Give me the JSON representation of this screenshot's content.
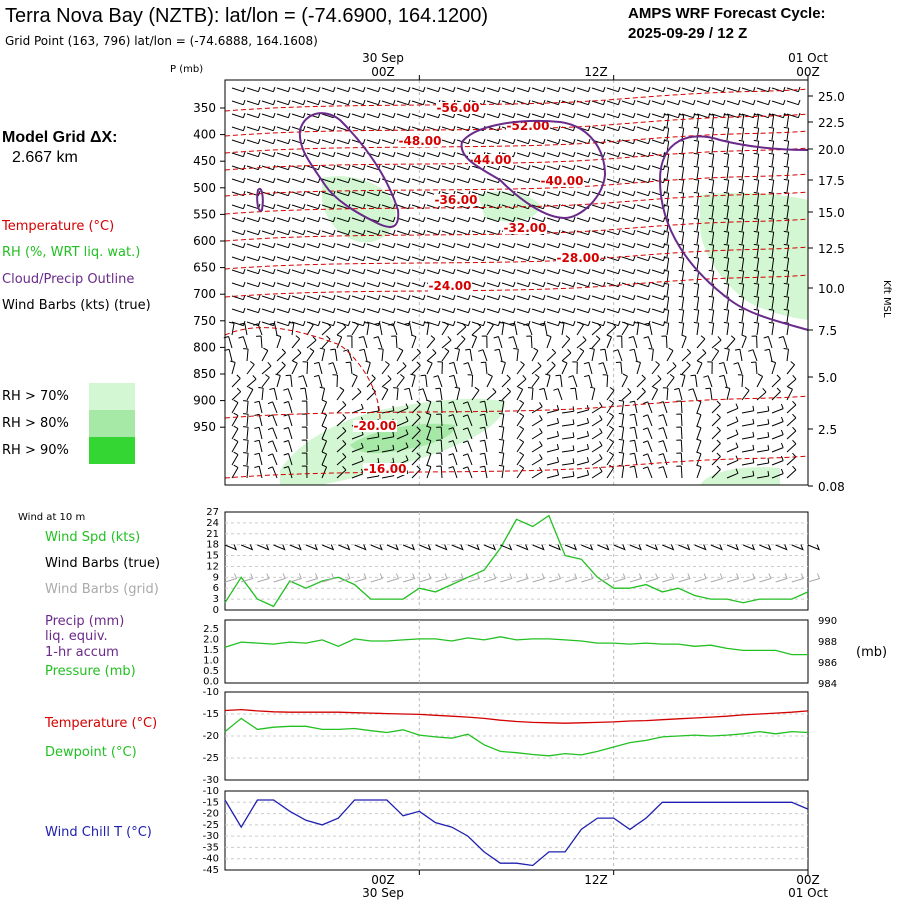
{
  "header": {
    "title": "Terra Nova Bay (NZTB):  lat/lon = (-74.6900, 164.1200)",
    "grid_point": "Grid Point (163, 796) lat/lon = (-74.6888, 164.1608)",
    "cycle_line1": "AMPS WRF Forecast Cycle:",
    "cycle_line2": "2025-09-29 / 12  Z"
  },
  "colors": {
    "temperature": "#d40000",
    "rh": "#22c022",
    "cloud": "#6a2a8a",
    "wind": "#000000",
    "wind_grid": "#aaaaaa",
    "windchill": "#2020b0",
    "rh70": "#d2f7d2",
    "rh80": "#a6e8a6",
    "rh90": "#33d633"
  },
  "legend": {
    "model_grid_line1": "Model Grid ΔX:",
    "model_grid_line2": "2.667 km",
    "temperature": "Temperature (°C)",
    "rh": "RH (%, WRT liq. wat.)",
    "cloud": "Cloud/Precip Outline",
    "wind": "Wind Barbs (kts) (true)",
    "rh70": "RH > 70%",
    "rh80": "RH > 80%",
    "rh90": "RH > 90%"
  },
  "time_axis": {
    "top_dates": [
      "30 Sep",
      "01 Oct"
    ],
    "ticks": [
      "00Z",
      "12Z",
      "00Z"
    ],
    "bottom_dates": [
      "30 Sep",
      "01 Oct"
    ]
  },
  "chart_data": [
    {
      "type": "line",
      "panel": "sounding",
      "ylabel_left": "P (mb)",
      "ylabel_right": "Kft MSL",
      "pressure_ticks": [
        "350",
        "400",
        "450",
        "500",
        "550",
        "600",
        "650",
        "700",
        "750",
        "800",
        "850",
        "900",
        "950"
      ],
      "height_ticks": [
        "25.0",
        "22.5",
        "20.0",
        "17.5",
        "15.0",
        "12.5",
        "10.0",
        "7.5",
        "5.0",
        "2.5",
        "0.08"
      ],
      "temperature_labels": [
        "-56.00",
        "-52.00",
        "-48.00",
        "-44.00",
        "-40.00",
        "-36.00",
        "-32.00",
        "-28.00",
        "-24.00",
        "-20.00",
        "-16.00"
      ]
    },
    {
      "type": "line",
      "panel": "wind_10m",
      "panel_title": "Wind at 10 m",
      "labels": [
        "Wind Spd (kts)",
        "Wind Barbs (true)",
        "Wind Barbs (grid)"
      ],
      "y_ticks": [
        "27",
        "24",
        "21",
        "18",
        "15",
        "12",
        "9",
        "6",
        "3",
        "0"
      ],
      "ylim": [
        0,
        27
      ],
      "x": [
        -12,
        -11,
        -10,
        -9,
        -8,
        -7,
        -6,
        -5,
        -4,
        -3,
        -2,
        -1,
        0,
        1,
        2,
        3,
        4,
        5,
        6,
        7,
        8,
        9,
        10,
        11,
        12,
        13,
        14,
        15,
        16,
        17,
        18,
        19,
        20,
        21,
        22,
        23,
        24
      ],
      "series": [
        {
          "name": "Wind Spd (kts)",
          "values": [
            2,
            9,
            3,
            1,
            8,
            6,
            8,
            9,
            7,
            3,
            3,
            3,
            6,
            5,
            7,
            9,
            11,
            17,
            25,
            23,
            26,
            15,
            14,
            9,
            6,
            6,
            7,
            5,
            6,
            4,
            3,
            3,
            2,
            3,
            3,
            3,
            5
          ]
        }
      ]
    },
    {
      "type": "line",
      "panel": "precip_pressure",
      "labels": [
        "Precip (mm)",
        "liq. equiv.",
        "1-hr accum",
        "Pressure (mb)"
      ],
      "y_ticks_left": [
        "2.5",
        "2.0",
        "1.5",
        "1.0",
        "0.5",
        "0.0"
      ],
      "y_ticks_right": [
        "990",
        "988",
        "986",
        "984"
      ],
      "right_unit": "(mb)",
      "ylim": [
        984,
        990
      ],
      "x": [
        -12,
        -11,
        -10,
        -9,
        -8,
        -7,
        -6,
        -5,
        -4,
        -3,
        -2,
        -1,
        0,
        1,
        2,
        3,
        4,
        5,
        6,
        7,
        8,
        9,
        10,
        11,
        12,
        13,
        14,
        15,
        16,
        17,
        18,
        19,
        20,
        21,
        22,
        23,
        24
      ],
      "series": [
        {
          "name": "Pressure (mb)",
          "values": [
            987.4,
            987.9,
            987.8,
            987.7,
            987.9,
            987.8,
            988.1,
            987.5,
            988.2,
            988.0,
            988.0,
            988.1,
            988.2,
            988.2,
            988.0,
            988.3,
            988.1,
            988.4,
            988.1,
            988.2,
            988.2,
            988.1,
            988.0,
            987.8,
            987.8,
            987.7,
            987.8,
            987.7,
            987.7,
            987.5,
            987.6,
            987.3,
            987.1,
            987.1,
            987.1,
            986.7,
            986.7
          ]
        }
      ]
    },
    {
      "type": "line",
      "panel": "temperature_dewpoint",
      "labels": [
        "Temperature (°C)",
        "Dewpoint (°C)"
      ],
      "y_ticks": [
        "-10",
        "-15",
        "-20",
        "-25",
        "-30"
      ],
      "ylim": [
        -30,
        -10
      ],
      "x": [
        -12,
        -11,
        -10,
        -9,
        -8,
        -7,
        -6,
        -5,
        -4,
        -3,
        -2,
        -1,
        0,
        1,
        2,
        3,
        4,
        5,
        6,
        7,
        8,
        9,
        10,
        11,
        12,
        13,
        14,
        15,
        16,
        17,
        18,
        19,
        20,
        21,
        22,
        23,
        24
      ],
      "series": [
        {
          "name": "Temperature (°C)",
          "values": [
            -14.2,
            -14.0,
            -14.3,
            -14.5,
            -14.6,
            -14.6,
            -14.6,
            -14.6,
            -14.7,
            -14.8,
            -14.9,
            -15.0,
            -15.1,
            -15.3,
            -15.5,
            -15.7,
            -16.0,
            -16.4,
            -16.7,
            -16.9,
            -17.0,
            -17.1,
            -17.0,
            -16.9,
            -16.8,
            -16.6,
            -16.5,
            -16.3,
            -16.1,
            -15.9,
            -15.7,
            -15.5,
            -15.2,
            -15.0,
            -14.8,
            -14.6,
            -14.3
          ]
        },
        {
          "name": "Dewpoint (°C)",
          "values": [
            -19.0,
            -16.0,
            -18.5,
            -18.0,
            -17.8,
            -17.8,
            -18.5,
            -18.5,
            -18.3,
            -18.8,
            -19.2,
            -18.6,
            -19.8,
            -20.2,
            -20.5,
            -19.6,
            -22.0,
            -23.5,
            -23.8,
            -24.2,
            -24.5,
            -24.0,
            -24.3,
            -23.5,
            -22.5,
            -21.5,
            -21.0,
            -20.2,
            -20.0,
            -19.8,
            -20.0,
            -19.8,
            -19.5,
            -19.0,
            -19.5,
            -19.0,
            -19.2
          ]
        }
      ]
    },
    {
      "type": "line",
      "panel": "wind_chill",
      "labels": [
        "Wind Chill T (°C)"
      ],
      "y_ticks": [
        "-10",
        "-15",
        "-20",
        "-25",
        "-30",
        "-35",
        "-40",
        "-45"
      ],
      "ylim": [
        -45,
        -10
      ],
      "x": [
        -12,
        -11,
        -10,
        -9,
        -8,
        -7,
        -6,
        -5,
        -4,
        -3,
        -2,
        -1,
        0,
        1,
        2,
        3,
        4,
        5,
        6,
        7,
        8,
        9,
        10,
        11,
        12,
        13,
        14,
        15,
        16,
        17,
        18,
        19,
        20,
        21,
        22,
        23,
        24
      ],
      "series": [
        {
          "name": "Wind Chill T (°C)",
          "values": [
            -14,
            -26,
            -14,
            -14,
            -19,
            -23,
            -25,
            -22,
            -14,
            -14,
            -14,
            -21,
            -19,
            -24,
            -26,
            -30,
            -37,
            -42,
            -42,
            -43,
            -37,
            -37,
            -27,
            -22,
            -22,
            -27,
            -22,
            -15,
            -15,
            -15,
            -15,
            -15,
            -15,
            -15,
            -15,
            -15,
            -18
          ]
        }
      ]
    }
  ]
}
